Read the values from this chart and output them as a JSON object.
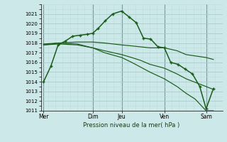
{
  "background_color": "#cce8e8",
  "grid_color_major": "#aacccc",
  "grid_color_minor": "#bbdddd",
  "line_color": "#1a5c1a",
  "xlabel": "Pression niveau de la mer( hPa )",
  "ylim": [
    1011,
    1022
  ],
  "xlim": [
    0,
    10.0
  ],
  "yticks": [
    1011,
    1012,
    1013,
    1014,
    1015,
    1016,
    1017,
    1018,
    1019,
    1020,
    1021
  ],
  "xtick_labels": [
    "Mer",
    "Dim",
    "Jeu",
    "Ven",
    "Sam"
  ],
  "xtick_positions": [
    0.15,
    2.85,
    4.45,
    6.8,
    9.1
  ],
  "vline_positions": [
    0.15,
    2.85,
    4.45,
    6.8,
    9.1
  ],
  "series": [
    {
      "x": [
        0.15,
        0.55,
        0.95,
        1.35,
        1.75,
        2.15,
        2.55,
        2.85,
        3.15,
        3.55,
        3.95,
        4.45,
        4.85,
        5.25,
        5.65,
        6.05,
        6.45,
        6.8,
        7.15,
        7.55,
        7.95,
        8.35,
        8.75,
        9.1,
        9.5
      ],
      "y": [
        1014.0,
        1015.6,
        1017.8,
        1018.2,
        1018.7,
        1018.8,
        1018.9,
        1019.0,
        1019.5,
        1020.3,
        1021.0,
        1021.3,
        1020.7,
        1020.1,
        1018.5,
        1018.4,
        1017.6,
        1017.5,
        1016.0,
        1015.8,
        1015.3,
        1014.8,
        1013.5,
        1011.2,
        1013.3
      ],
      "has_markers": true
    },
    {
      "x": [
        0.15,
        1.0,
        2.0,
        2.85,
        3.5,
        4.45,
        5.0,
        5.5,
        6.0,
        6.8,
        7.5,
        8.0,
        9.1,
        9.5
      ],
      "y": [
        1017.8,
        1018.0,
        1018.1,
        1018.1,
        1018.0,
        1017.8,
        1017.7,
        1017.6,
        1017.5,
        1017.5,
        1017.2,
        1016.8,
        1016.5,
        1016.3
      ],
      "has_markers": false
    },
    {
      "x": [
        0.15,
        1.0,
        2.0,
        2.85,
        3.5,
        4.45,
        5.0,
        5.5,
        6.0,
        6.8,
        7.5,
        8.0,
        9.1,
        9.5
      ],
      "y": [
        1017.8,
        1017.9,
        1017.8,
        1017.5,
        1017.2,
        1016.8,
        1016.5,
        1016.2,
        1015.8,
        1015.4,
        1014.8,
        1014.3,
        1013.5,
        1013.2
      ],
      "has_markers": false
    },
    {
      "x": [
        0.15,
        1.0,
        2.0,
        2.85,
        3.5,
        4.45,
        5.0,
        5.5,
        6.0,
        6.8,
        7.5,
        8.0,
        8.5,
        9.1,
        9.5
      ],
      "y": [
        1017.9,
        1018.0,
        1017.9,
        1017.5,
        1017.0,
        1016.5,
        1016.0,
        1015.5,
        1015.0,
        1014.3,
        1013.5,
        1012.8,
        1012.2,
        1011.0,
        1011.0
      ],
      "has_markers": false
    }
  ]
}
